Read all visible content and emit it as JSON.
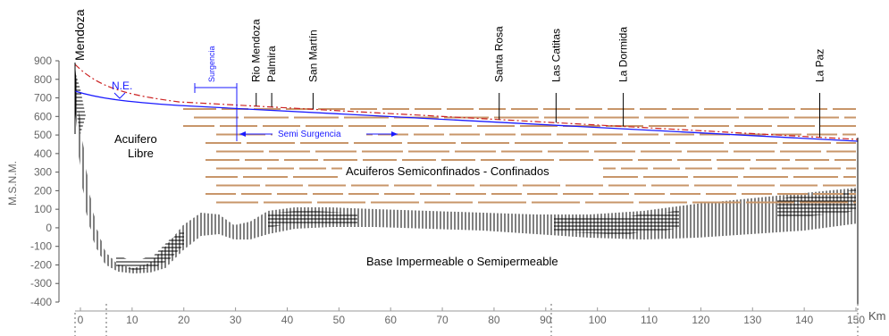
{
  "chart_data": {
    "type": "cross-section",
    "ylabel": "M.S.N.M.",
    "xunit": "Km",
    "y_ticks": [
      900,
      800,
      700,
      600,
      500,
      400,
      300,
      200,
      100,
      0,
      -100,
      -200,
      -300,
      -400
    ],
    "x_ticks": [
      0,
      10,
      20,
      30,
      40,
      50,
      60,
      70,
      80,
      90,
      100,
      110,
      120,
      130,
      140,
      150
    ],
    "xlim": [
      0,
      150
    ],
    "ylim": [
      -400,
      900
    ],
    "locations": [
      {
        "name": "Mendoza",
        "km": 0
      },
      {
        "name": "Rio Mendoza",
        "km": 34
      },
      {
        "name": "Palmira",
        "km": 37
      },
      {
        "name": "San Martín",
        "km": 45
      },
      {
        "name": "Santa Rosa",
        "km": 81
      },
      {
        "name": "Las Catitas",
        "km": 92
      },
      {
        "name": "La Dormida",
        "km": 105
      },
      {
        "name": "La Paz",
        "km": 143
      }
    ],
    "labels": {
      "ne": "N.E.",
      "surgencia": "Surgencia",
      "semi_surgencia": "Semi Surgencia",
      "acuifero_libre_1": "Acuifero",
      "acuifero_libre_2": "Libre",
      "confinados": "Acuiferos Semiconfinados - Confinados",
      "base": "Base Impermeable o Semipermeable"
    },
    "colors": {
      "water_table": "#1a1aff",
      "ground_surface": "#cc2222",
      "aquifer_layers": "#c8966a",
      "axis": "#555555",
      "hatch": "#000000"
    }
  }
}
